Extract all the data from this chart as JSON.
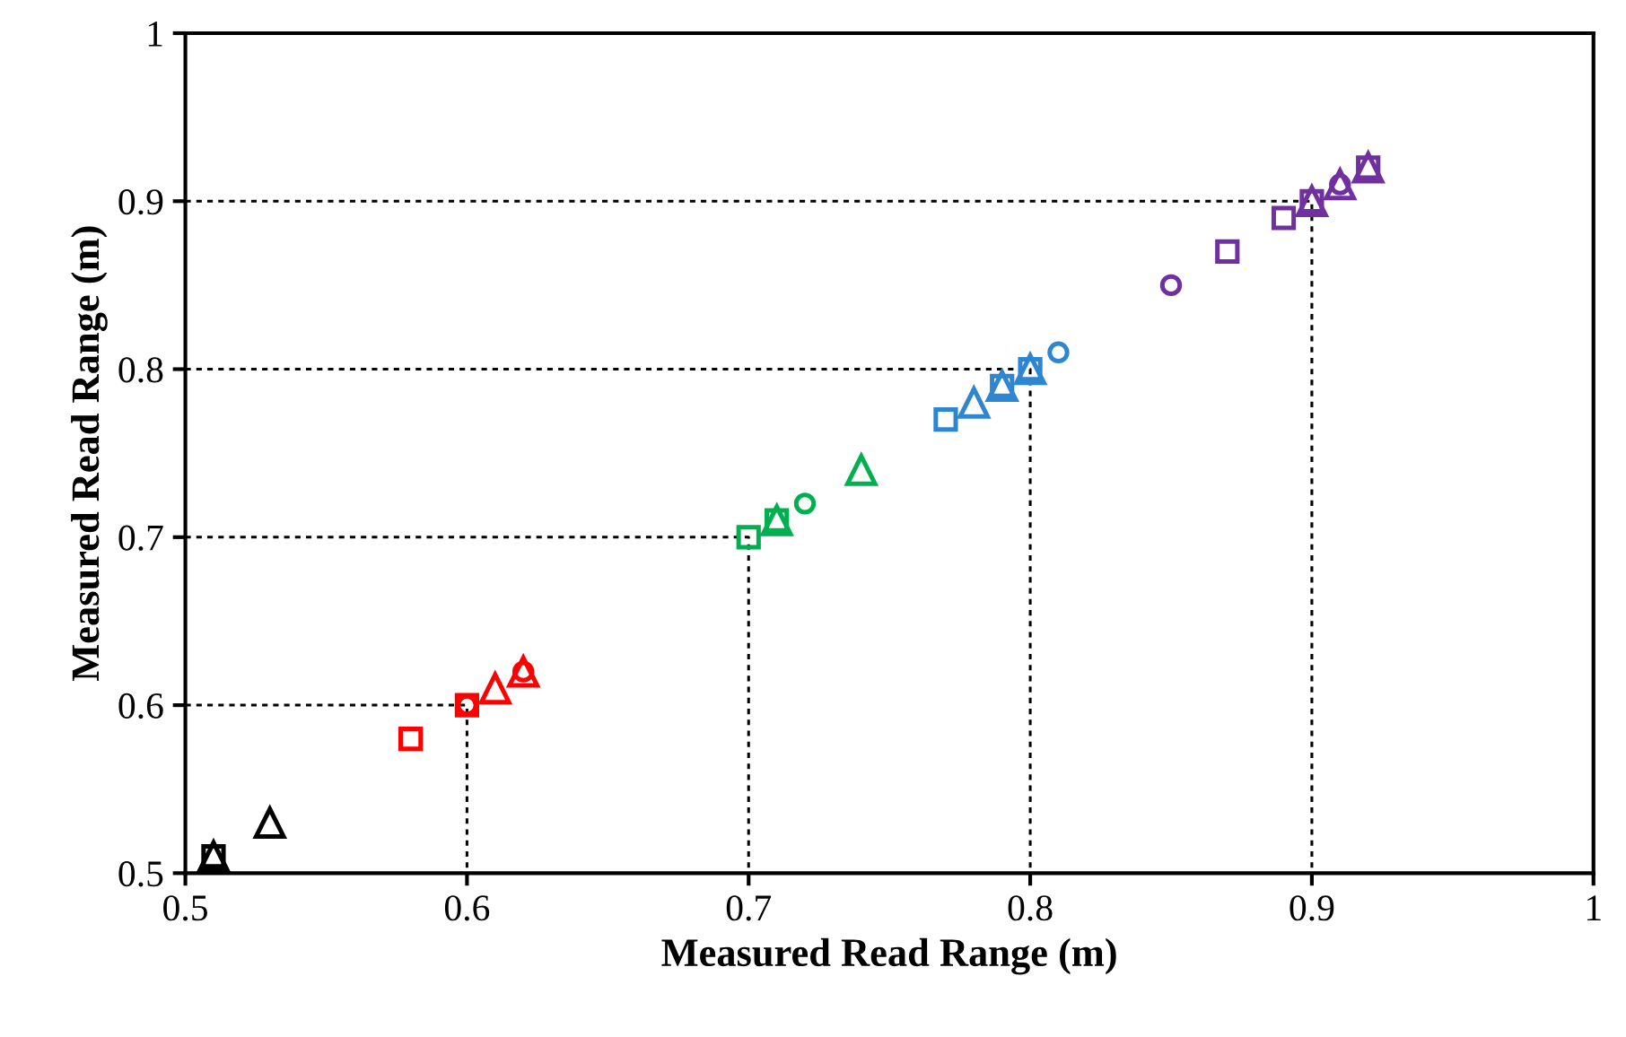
{
  "chart_data": {
    "type": "scatter",
    "xlabel": "Measured Read Range (m)",
    "ylabel": "Measured Read Range (m)",
    "xlim": [
      0.5,
      1
    ],
    "ylim": [
      0.5,
      1
    ],
    "xticks": [
      0.5,
      0.6,
      0.7,
      0.8,
      0.9,
      1
    ],
    "yticks": [
      0.5,
      0.6,
      0.7,
      0.8,
      0.9,
      1
    ],
    "grid": false,
    "legend": false,
    "series": [
      {
        "type": "line",
        "color": "#000000",
        "line_style": "dotted",
        "marker": "none",
        "x": [
          0.5,
          0.6,
          0.6
        ],
        "values": [
          0.6,
          0.6,
          0.5
        ]
      },
      {
        "type": "line",
        "color": "#000000",
        "line_style": "dotted",
        "marker": "none",
        "x": [
          0.5,
          0.7,
          0.7
        ],
        "values": [
          0.7,
          0.7,
          0.5
        ]
      },
      {
        "type": "line",
        "color": "#000000",
        "line_style": "dotted",
        "marker": "none",
        "x": [
          0.5,
          0.8,
          0.8
        ],
        "values": [
          0.8,
          0.8,
          0.5
        ]
      },
      {
        "type": "line",
        "color": "#000000",
        "line_style": "dotted",
        "marker": "none",
        "x": [
          0.5,
          0.9,
          0.9
        ],
        "values": [
          0.9,
          0.9,
          0.5
        ]
      },
      {
        "color": "#000000",
        "marker": "triangle",
        "x": [
          0.51,
          0.53
        ],
        "values": [
          0.51,
          0.53
        ]
      },
      {
        "color": "#000000",
        "marker": "square",
        "x": [
          0.51
        ],
        "values": [
          0.51
        ]
      },
      {
        "color": "#ff0000",
        "marker": "square",
        "x": [
          0.58,
          0.6
        ],
        "values": [
          0.58,
          0.6
        ]
      },
      {
        "color": "#ff0000",
        "marker": "triangle",
        "x": [
          0.61,
          0.62
        ],
        "values": [
          0.61,
          0.62
        ]
      },
      {
        "color": "#ff0000",
        "marker": "circle",
        "x": [
          0.6,
          0.62
        ],
        "values": [
          0.6,
          0.62
        ]
      },
      {
        "color": "#00b050",
        "marker": "square",
        "x": [
          0.7,
          0.71
        ],
        "values": [
          0.7,
          0.71
        ]
      },
      {
        "color": "#00b050",
        "marker": "triangle",
        "x": [
          0.71,
          0.74
        ],
        "values": [
          0.71,
          0.74
        ]
      },
      {
        "color": "#00b050",
        "marker": "circle",
        "x": [
          0.72
        ],
        "values": [
          0.72
        ]
      },
      {
        "color": "#2f86d0",
        "marker": "square",
        "x": [
          0.77,
          0.79,
          0.8
        ],
        "values": [
          0.77,
          0.79,
          0.8
        ]
      },
      {
        "color": "#2f86d0",
        "marker": "triangle",
        "x": [
          0.78,
          0.79,
          0.8
        ],
        "values": [
          0.78,
          0.79,
          0.8
        ]
      },
      {
        "color": "#2f86d0",
        "marker": "circle",
        "x": [
          0.81
        ],
        "values": [
          0.81
        ]
      },
      {
        "color": "#7030a0",
        "marker": "circle",
        "x": [
          0.85,
          0.91
        ],
        "values": [
          0.85,
          0.91
        ]
      },
      {
        "color": "#7030a0",
        "marker": "square",
        "x": [
          0.87,
          0.89,
          0.9,
          0.92
        ],
        "values": [
          0.87,
          0.89,
          0.9,
          0.92
        ]
      },
      {
        "color": "#7030a0",
        "marker": "triangle",
        "x": [
          0.9,
          0.91,
          0.92
        ],
        "values": [
          0.9,
          0.91,
          0.92
        ]
      }
    ]
  }
}
